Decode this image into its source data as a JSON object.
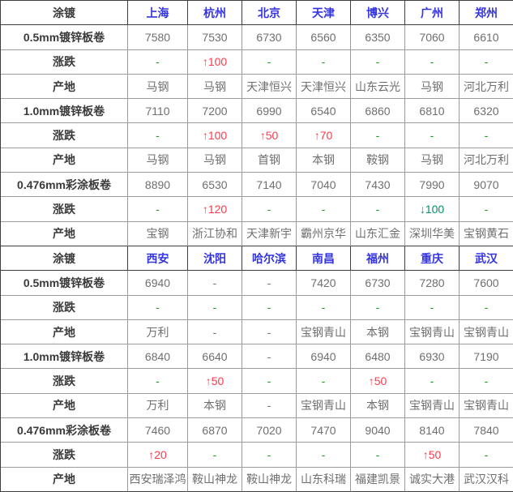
{
  "colors": {
    "header_label": "#fe0000",
    "city_link": "#3434e0",
    "row_label": "#3a3a3a",
    "value": "#6f6f6f",
    "change_up": "#fb3b4b",
    "change_down": "#00945e",
    "change_flat": "#149c14",
    "grid_inner": "#9b9b9b",
    "grid_strong": "#3e3e3e"
  },
  "table": {
    "sections": [
      {
        "title": "涂镀",
        "cities": [
          "上海",
          "杭州",
          "北京",
          "天津",
          "博兴",
          "广州",
          "郑州"
        ],
        "rows": [
          {
            "label": "0.5mm镀锌板卷",
            "type": "price",
            "values": [
              "7580",
              "7530",
              "6730",
              "6560",
              "6350",
              "7060",
              "6610"
            ]
          },
          {
            "label": "涨跌",
            "type": "change",
            "values": [
              "-",
              "↑100",
              "-",
              "-",
              "-",
              "-",
              "-"
            ]
          },
          {
            "label": "产地",
            "type": "origin",
            "values": [
              "马钢",
              "马钢",
              "天津恒兴",
              "天津恒兴",
              "山东云光",
              "马钢",
              "河北万利"
            ]
          },
          {
            "label": "1.0mm镀锌板卷",
            "type": "price",
            "values": [
              "7110",
              "7200",
              "6990",
              "6540",
              "6860",
              "6810",
              "6320"
            ]
          },
          {
            "label": "涨跌",
            "type": "change",
            "values": [
              "-",
              "↑100",
              "↑50",
              "↑70",
              "-",
              "-",
              "-"
            ]
          },
          {
            "label": "产地",
            "type": "origin",
            "values": [
              "马钢",
              "马钢",
              "首钢",
              "本钢",
              "鞍钢",
              "马钢",
              "河北万利"
            ]
          },
          {
            "label": "0.476mm彩涂板卷",
            "type": "price",
            "values": [
              "8890",
              "6530",
              "7140",
              "7040",
              "7430",
              "7990",
              "9070"
            ]
          },
          {
            "label": "涨跌",
            "type": "change",
            "values": [
              "-",
              "↑120",
              "-",
              "-",
              "-",
              "↓100",
              "-"
            ]
          },
          {
            "label": "产地",
            "type": "origin",
            "values": [
              "宝钢",
              "浙江协和",
              "天津新宇",
              "霸州京华",
              "山东汇金",
              "深圳华美",
              "宝钢黄石"
            ]
          }
        ]
      },
      {
        "title": "涂镀",
        "cities": [
          "西安",
          "沈阳",
          "哈尔滨",
          "南昌",
          "福州",
          "重庆",
          "武汉"
        ],
        "rows": [
          {
            "label": "0.5mm镀锌板卷",
            "type": "price",
            "values": [
              "6940",
              "-",
              "-",
              "7420",
              "6730",
              "7280",
              "7600"
            ]
          },
          {
            "label": "涨跌",
            "type": "change",
            "values": [
              "-",
              "-",
              "-",
              "-",
              "-",
              "-",
              "-"
            ]
          },
          {
            "label": "产地",
            "type": "origin",
            "values": [
              "万利",
              "-",
              "-",
              "宝钢青山",
              "本钢",
              "宝钢青山",
              "宝钢青山"
            ]
          },
          {
            "label": "1.0mm镀锌板卷",
            "type": "price",
            "values": [
              "6840",
              "6640",
              "-",
              "6940",
              "6480",
              "6930",
              "7190"
            ]
          },
          {
            "label": "涨跌",
            "type": "change",
            "values": [
              "-",
              "↑50",
              "-",
              "-",
              "↑50",
              "-",
              "-"
            ]
          },
          {
            "label": "产地",
            "type": "origin",
            "values": [
              "万利",
              "本钢",
              "-",
              "宝钢青山",
              "本钢",
              "宝钢青山",
              "宝钢青山"
            ]
          },
          {
            "label": "0.476mm彩涂板卷",
            "type": "price",
            "values": [
              "7460",
              "6870",
              "7020",
              "7470",
              "9040",
              "8140",
              "7840"
            ]
          },
          {
            "label": "涨跌",
            "type": "change",
            "values": [
              "↑20",
              "-",
              "-",
              "-",
              "-",
              "↑50",
              "-"
            ]
          },
          {
            "label": "产地",
            "type": "origin",
            "values": [
              "西安瑞泽鸿",
              "鞍山神龙",
              "鞍山神龙",
              "山东科瑞",
              "福建凯景",
              "诚实大港",
              "武汉汉科"
            ]
          }
        ]
      }
    ]
  },
  "chart_data": [
    {
      "type": "table",
      "title": "涂镀",
      "columns": [
        "涂镀",
        "上海",
        "杭州",
        "北京",
        "天津",
        "博兴",
        "广州",
        "郑州"
      ],
      "rows": [
        [
          "0.5mm镀锌板卷",
          7580,
          7530,
          6730,
          6560,
          6350,
          7060,
          6610
        ],
        [
          "涨跌",
          "-",
          "↑100",
          "-",
          "-",
          "-",
          "-",
          "-"
        ],
        [
          "产地",
          "马钢",
          "马钢",
          "天津恒兴",
          "天津恒兴",
          "山东云光",
          "马钢",
          "河北万利"
        ],
        [
          "1.0mm镀锌板卷",
          7110,
          7200,
          6990,
          6540,
          6860,
          6810,
          6320
        ],
        [
          "涨跌",
          "-",
          "↑100",
          "↑50",
          "↑70",
          "-",
          "-",
          "-"
        ],
        [
          "产地",
          "马钢",
          "马钢",
          "首钢",
          "本钢",
          "鞍钢",
          "马钢",
          "河北万利"
        ],
        [
          "0.476mm彩涂板卷",
          8890,
          6530,
          7140,
          7040,
          7430,
          7990,
          9070
        ],
        [
          "涨跌",
          "-",
          "↑120",
          "-",
          "-",
          "-",
          "↓100",
          "-"
        ],
        [
          "产地",
          "宝钢",
          "浙江协和",
          "天津新宇",
          "霸州京华",
          "山东汇金",
          "深圳华美",
          "宝钢黄石"
        ]
      ]
    },
    {
      "type": "table",
      "title": "涂镀",
      "columns": [
        "涂镀",
        "西安",
        "沈阳",
        "哈尔滨",
        "南昌",
        "福州",
        "重庆",
        "武汉"
      ],
      "rows": [
        [
          "0.5mm镀锌板卷",
          6940,
          "-",
          "-",
          7420,
          6730,
          7280,
          7600
        ],
        [
          "涨跌",
          "-",
          "-",
          "-",
          "-",
          "-",
          "-",
          "-"
        ],
        [
          "产地",
          "万利",
          "-",
          "-",
          "宝钢青山",
          "本钢",
          "宝钢青山",
          "宝钢青山"
        ],
        [
          "1.0mm镀锌板卷",
          6840,
          6640,
          "-",
          6940,
          6480,
          6930,
          7190
        ],
        [
          "涨跌",
          "-",
          "↑50",
          "-",
          "-",
          "↑50",
          "-",
          "-"
        ],
        [
          "产地",
          "万利",
          "本钢",
          "-",
          "宝钢青山",
          "本钢",
          "宝钢青山",
          "宝钢青山"
        ],
        [
          "0.476mm彩涂板卷",
          7460,
          6870,
          7020,
          7470,
          9040,
          8140,
          7840
        ],
        [
          "涨跌",
          "↑20",
          "-",
          "-",
          "-",
          "-",
          "↑50",
          "-"
        ],
        [
          "产地",
          "西安瑞泽鸿",
          "鞍山神龙",
          "鞍山神龙",
          "山东科瑞",
          "福建凯景",
          "诚实大港",
          "武汉汉科"
        ]
      ]
    }
  ]
}
